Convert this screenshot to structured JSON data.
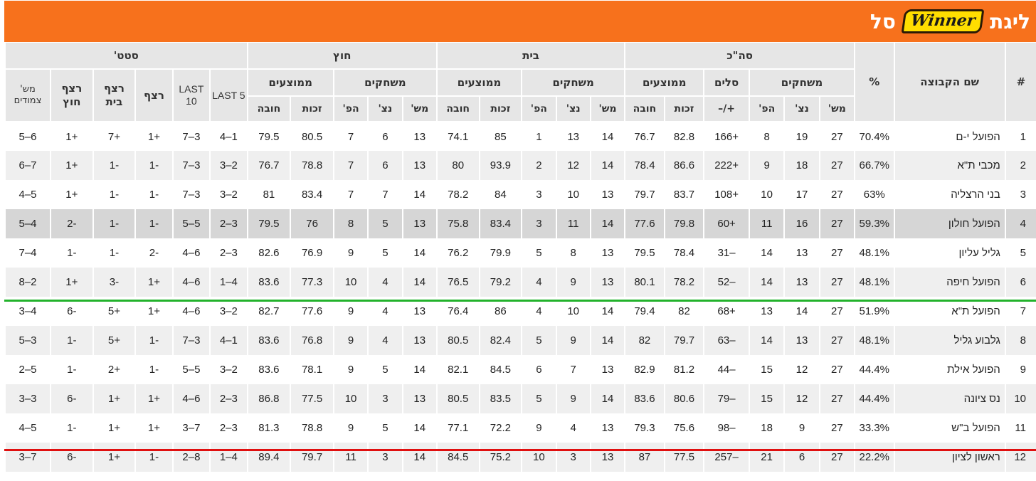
{
  "header": {
    "title_prefix": "ליגת",
    "logo_text": "Winner",
    "title_suffix": "סל",
    "bg_color": "#f7711c"
  },
  "table": {
    "group_headers": {
      "pos": "#",
      "team": "שם הקבוצה",
      "pct": "%",
      "total": "סה\"כ",
      "home": "בית",
      "away": "חוץ",
      "stats": "סטט'"
    },
    "sub_headers": {
      "games": "משחקים",
      "baskets": "סלים",
      "averages": "ממוצעים",
      "streak": "רצף",
      "home_streak": "רצף בית",
      "away_streak": "רצף חוץ",
      "last10": "LAST 10",
      "last5": "LAST 5",
      "tied": "מש' צמודים"
    },
    "col_headers": {
      "played": "מש'",
      "won": "נצ'",
      "lost": "הפ'",
      "diff": "+/–",
      "for": "זכות",
      "against": "חובה"
    },
    "rows": [
      {
        "pos": "1",
        "team": "הפועל י-ם",
        "pct": "70.4%",
        "t_p": "27",
        "t_w": "19",
        "t_l": "8",
        "t_d": "+166",
        "t_f": "82.8",
        "t_a": "76.7",
        "h_p": "14",
        "h_w": "13",
        "h_l": "1",
        "h_f": "85",
        "h_a": "74.1",
        "a_p": "13",
        "a_w": "6",
        "a_l": "7",
        "a_f": "80.5",
        "a_a": "79.5",
        "l5": "1–4",
        "l10": "3–7",
        "st": "+1",
        "hs": "+7",
        "as": "+1",
        "cl": "6–5"
      },
      {
        "pos": "2",
        "team": "מכבי ת\"א",
        "pct": "66.7%",
        "t_p": "27",
        "t_w": "18",
        "t_l": "9",
        "t_d": "+222",
        "t_f": "86.6",
        "t_a": "78.4",
        "h_p": "14",
        "h_w": "12",
        "h_l": "2",
        "h_f": "93.9",
        "h_a": "80",
        "a_p": "13",
        "a_w": "6",
        "a_l": "7",
        "a_f": "78.8",
        "a_a": "76.7",
        "l5": "2–3",
        "l10": "3–7",
        "st": "-1",
        "hs": "-1",
        "as": "+1",
        "cl": "7–6"
      },
      {
        "pos": "3",
        "team": "בני הרצליה",
        "pct": "63%",
        "t_p": "27",
        "t_w": "17",
        "t_l": "10",
        "t_d": "+108",
        "t_f": "83.7",
        "t_a": "79.7",
        "h_p": "13",
        "h_w": "10",
        "h_l": "3",
        "h_f": "84",
        "h_a": "78.2",
        "a_p": "14",
        "a_w": "7",
        "a_l": "7",
        "a_f": "83.4",
        "a_a": "81",
        "l5": "2–3",
        "l10": "3–7",
        "st": "-1",
        "hs": "-1",
        "as": "+1",
        "cl": "5–4"
      },
      {
        "pos": "4",
        "team": "הפועל חולון",
        "pct": "59.3%",
        "t_p": "27",
        "t_w": "16",
        "t_l": "11",
        "t_d": "+60",
        "t_f": "79.8",
        "t_a": "77.6",
        "h_p": "14",
        "h_w": "11",
        "h_l": "3",
        "h_f": "83.4",
        "h_a": "75.8",
        "a_p": "13",
        "a_w": "5",
        "a_l": "8",
        "a_f": "76",
        "a_a": "79.5",
        "l5": "3–2",
        "l10": "5–5",
        "st": "-1",
        "hs": "-1",
        "as": "-2",
        "cl": "4–5"
      },
      {
        "pos": "5",
        "team": "גליל עליון",
        "pct": "48.1%",
        "t_p": "27",
        "t_w": "13",
        "t_l": "14",
        "t_d": "–31",
        "t_f": "78.4",
        "t_a": "79.5",
        "h_p": "13",
        "h_w": "8",
        "h_l": "5",
        "h_f": "79.9",
        "h_a": "76.2",
        "a_p": "14",
        "a_w": "5",
        "a_l": "9",
        "a_f": "76.9",
        "a_a": "82.6",
        "l5": "3–2",
        "l10": "6–4",
        "st": "-2",
        "hs": "-1",
        "as": "-1",
        "cl": "4–7"
      },
      {
        "pos": "6",
        "team": "הפועל חיפה",
        "pct": "48.1%",
        "t_p": "27",
        "t_w": "13",
        "t_l": "14",
        "t_d": "–52",
        "t_f": "78.2",
        "t_a": "80.1",
        "h_p": "13",
        "h_w": "9",
        "h_l": "4",
        "h_f": "79.2",
        "h_a": "76.5",
        "a_p": "14",
        "a_w": "4",
        "a_l": "10",
        "a_f": "77.3",
        "a_a": "83.6",
        "l5": "4–1",
        "l10": "6–4",
        "st": "+1",
        "hs": "-3",
        "as": "+1",
        "cl": "2–8"
      },
      {
        "pos": "7",
        "team": "הפועל ת\"א",
        "pct": "51.9%",
        "t_p": "27",
        "t_w": "14",
        "t_l": "13",
        "t_d": "+68",
        "t_f": "82",
        "t_a": "79.4",
        "h_p": "14",
        "h_w": "10",
        "h_l": "4",
        "h_f": "86",
        "h_a": "76.4",
        "a_p": "13",
        "a_w": "4",
        "a_l": "9",
        "a_f": "77.6",
        "a_a": "82.7",
        "l5": "2–3",
        "l10": "6–4",
        "st": "+1",
        "hs": "+5",
        "as": "-6",
        "cl": "4–3"
      },
      {
        "pos": "8",
        "team": "גלבוע גליל",
        "pct": "48.1%",
        "t_p": "27",
        "t_w": "13",
        "t_l": "14",
        "t_d": "–63",
        "t_f": "79.7",
        "t_a": "82",
        "h_p": "14",
        "h_w": "9",
        "h_l": "5",
        "h_f": "82.4",
        "h_a": "80.5",
        "a_p": "13",
        "a_w": "4",
        "a_l": "9",
        "a_f": "76.8",
        "a_a": "83.6",
        "l5": "1–4",
        "l10": "3–7",
        "st": "-1",
        "hs": "+5",
        "as": "-1",
        "cl": "3–5"
      },
      {
        "pos": "9",
        "team": "הפועל אילת",
        "pct": "44.4%",
        "t_p": "27",
        "t_w": "12",
        "t_l": "15",
        "t_d": "–44",
        "t_f": "81.2",
        "t_a": "82.9",
        "h_p": "13",
        "h_w": "7",
        "h_l": "6",
        "h_f": "84.5",
        "h_a": "82.1",
        "a_p": "14",
        "a_w": "5",
        "a_l": "9",
        "a_f": "78.1",
        "a_a": "83.6",
        "l5": "2–3",
        "l10": "5–5",
        "st": "-1",
        "hs": "+2",
        "as": "-1",
        "cl": "5–2"
      },
      {
        "pos": "10",
        "team": "נס ציונה",
        "pct": "44.4%",
        "t_p": "27",
        "t_w": "12",
        "t_l": "15",
        "t_d": "–79",
        "t_f": "80.6",
        "t_a": "83.6",
        "h_p": "14",
        "h_w": "9",
        "h_l": "5",
        "h_f": "83.5",
        "h_a": "80.5",
        "a_p": "13",
        "a_w": "3",
        "a_l": "10",
        "a_f": "77.5",
        "a_a": "86.8",
        "l5": "3–2",
        "l10": "6–4",
        "st": "+1",
        "hs": "+1",
        "as": "-6",
        "cl": "3–3"
      },
      {
        "pos": "11",
        "team": "הפועל ב\"ש",
        "pct": "33.3%",
        "t_p": "27",
        "t_w": "9",
        "t_l": "18",
        "t_d": "–98",
        "t_f": "75.6",
        "t_a": "79.3",
        "h_p": "13",
        "h_w": "4",
        "h_l": "9",
        "h_f": "72.2",
        "h_a": "77.1",
        "a_p": "14",
        "a_w": "5",
        "a_l": "9",
        "a_f": "78.8",
        "a_a": "81.3",
        "l5": "3–2",
        "l10": "7–3",
        "st": "+1",
        "hs": "+1",
        "as": "-1",
        "cl": "5–4"
      },
      {
        "pos": "12",
        "team": "ראשון לציון",
        "pct": "22.2%",
        "t_p": "27",
        "t_w": "6",
        "t_l": "21",
        "t_d": "–257",
        "t_f": "77.5",
        "t_a": "87",
        "h_p": "13",
        "h_w": "3",
        "h_l": "10",
        "h_f": "75.2",
        "h_a": "84.5",
        "a_p": "14",
        "a_w": "3",
        "a_l": "11",
        "a_f": "79.7",
        "a_a": "89.4",
        "l5": "4–1",
        "l10": "8–2",
        "st": "-1",
        "hs": "+1",
        "as": "-6",
        "cl": "7–3"
      }
    ]
  },
  "separators": {
    "playoff_color": "#22b22b",
    "relegation_color": "#e01010"
  }
}
